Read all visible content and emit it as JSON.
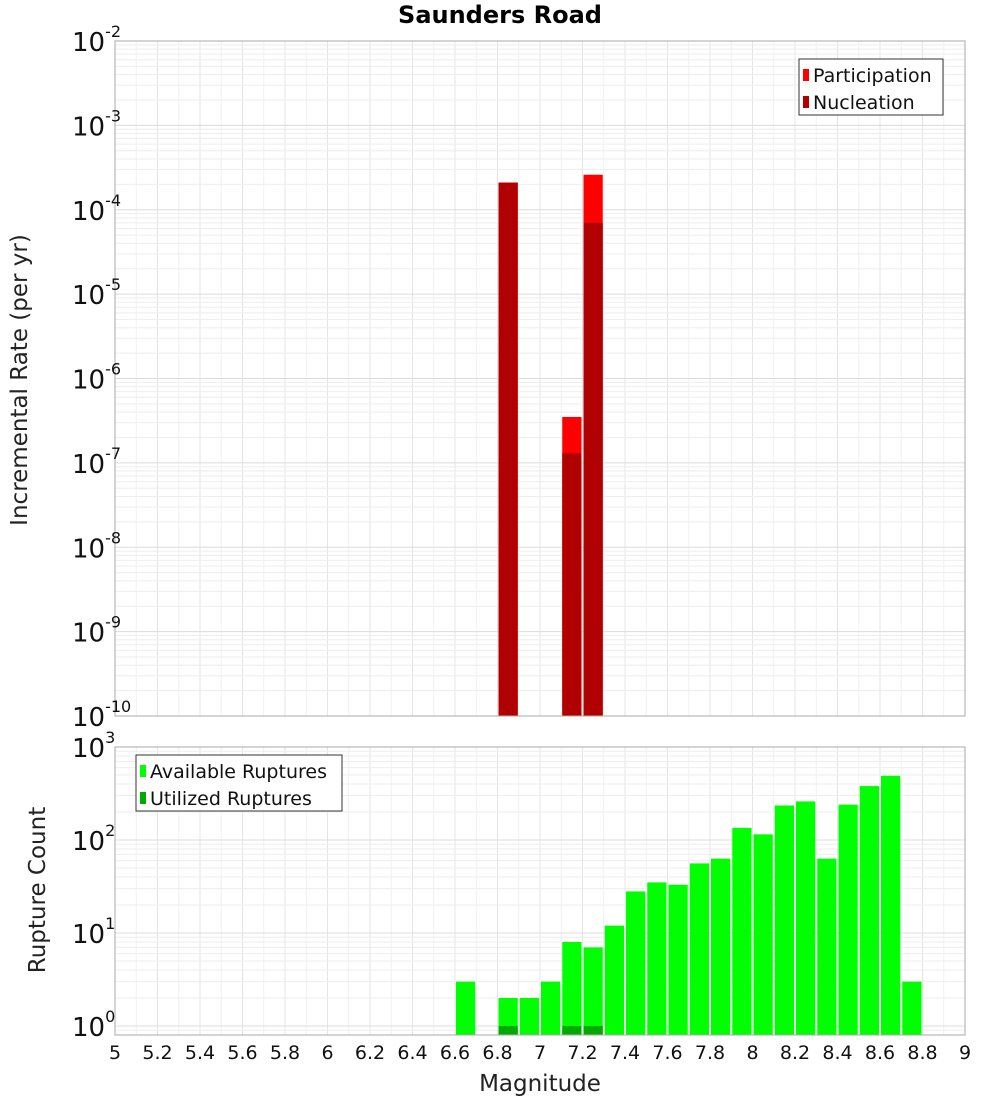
{
  "title": "Saunders Road",
  "chart_data": [
    {
      "type": "bar",
      "title": "Saunders Road",
      "xlabel": "",
      "ylabel": "Incremental Rate (per yr)",
      "yscale": "log",
      "xlim": [
        5,
        9
      ],
      "ylim": [
        1e-10,
        0.01
      ],
      "grid": true,
      "legend_position": "top-right",
      "bin_width": 0.1,
      "series": [
        {
          "name": "Participation",
          "color": "#ff0000",
          "x": [
            6.85,
            7.15,
            7.25
          ],
          "values": [
            0.00021,
            3.5e-07,
            0.00026
          ]
        },
        {
          "name": "Nucleation",
          "color": "#b00000",
          "x": [
            6.85,
            7.15,
            7.25
          ],
          "values": [
            0.00021,
            1.3e-07,
            7e-05
          ]
        }
      ]
    },
    {
      "type": "bar",
      "xlabel": "Magnitude",
      "ylabel": "Rupture Count",
      "yscale": "log",
      "xlim": [
        5,
        9
      ],
      "ylim": [
        0.8,
        1000
      ],
      "grid": true,
      "legend_position": "top-left",
      "bin_width": 0.1,
      "x_ticks": [
        "5",
        "5.2",
        "5.4",
        "5.6",
        "5.8",
        "6",
        "6.2",
        "6.4",
        "6.6",
        "6.8",
        "7",
        "7.2",
        "7.4",
        "7.6",
        "7.8",
        "8",
        "8.2",
        "8.4",
        "8.6",
        "8.8",
        "9"
      ],
      "series": [
        {
          "name": "Available Ruptures",
          "color": "#00ff00",
          "x": [
            6.65,
            6.85,
            6.95,
            7.05,
            7.15,
            7.25,
            7.35,
            7.45,
            7.55,
            7.65,
            7.75,
            7.85,
            7.95,
            8.05,
            8.15,
            8.25,
            8.35,
            8.45,
            8.55,
            8.65,
            8.75
          ],
          "values": [
            3,
            2,
            2,
            3,
            8,
            7,
            12,
            28,
            35,
            33,
            56,
            63,
            135,
            115,
            235,
            260,
            63,
            240,
            380,
            490,
            3
          ]
        },
        {
          "name": "Utilized Ruptures",
          "color": "#00aa00",
          "x": [
            6.85,
            7.15,
            7.25
          ],
          "values": [
            1,
            1,
            1
          ]
        }
      ]
    }
  ],
  "y_exponent_base": "10",
  "top_exponents": [
    "-2",
    "-3",
    "-4",
    "-5",
    "-6",
    "-7",
    "-8",
    "-9",
    "-10"
  ],
  "bottom_exponents": [
    "3",
    "2",
    "1",
    "0"
  ]
}
